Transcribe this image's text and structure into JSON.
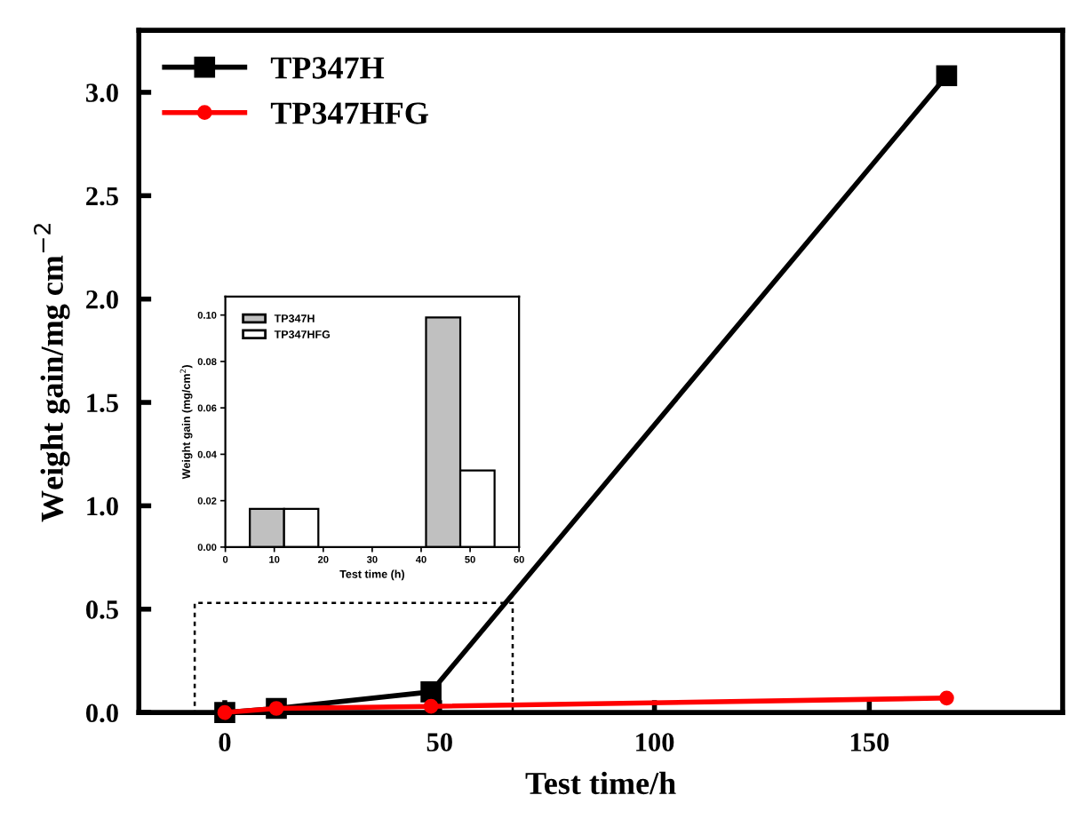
{
  "chart_data": [
    {
      "type": "line",
      "xlabel": "Test time/h",
      "ylabel": "Weight gain/mg cm$^{−2}$",
      "xlim": [
        -20,
        195
      ],
      "ylim": [
        0,
        3.3
      ],
      "xticks": [
        0,
        50,
        100,
        150
      ],
      "yticks": [
        {
          "value": 0,
          "label": "0.0"
        },
        0.5,
        {
          "value": 1,
          "label": "1.0"
        },
        1.5,
        {
          "value": 2,
          "label": "2.0"
        },
        2.5,
        {
          "value": 3,
          "label": "3.0"
        }
      ],
      "legend": "top left",
      "grid": false,
      "line_style": "solid",
      "x": [
        0,
        12,
        48,
        168
      ],
      "series": [
        {
          "name": "TP347H",
          "color": "#000000",
          "marker": "square",
          "values": [
            0,
            0.02,
            0.1,
            3.08
          ]
        },
        {
          "name": "TP347HFG",
          "color": "#ff0000",
          "marker": "circle",
          "values": [
            0,
            0.02,
            0.03,
            0.07
          ]
        }
      ]
    },
    {
      "type": "bar",
      "xlabel": "Test time (h)",
      "ylabel": "Weight gain (mg/cm$^{2}$)",
      "xlim": [
        0,
        60
      ],
      "ylim": [
        0,
        0.108
      ],
      "xticks": [
        0,
        10,
        20,
        30,
        40,
        50,
        60
      ],
      "yticks": [
        {
          "value": 0,
          "label": "0.00"
        },
        0.02,
        0.04,
        0.06,
        0.08,
        {
          "value": 0.1,
          "label": "0.10"
        }
      ],
      "legend": "top left",
      "grid": false,
      "series": [
        {
          "name": "TP347H",
          "color": "#c0c0c0",
          "x": [
            8.5,
            44.5
          ],
          "values": [
            0.0165,
            0.099
          ]
        },
        {
          "name": "TP347HFG",
          "color": "#ffffff",
          "x": [
            15.5,
            51.5
          ],
          "values": [
            0.0165,
            0.033
          ]
        }
      ]
    }
  ]
}
